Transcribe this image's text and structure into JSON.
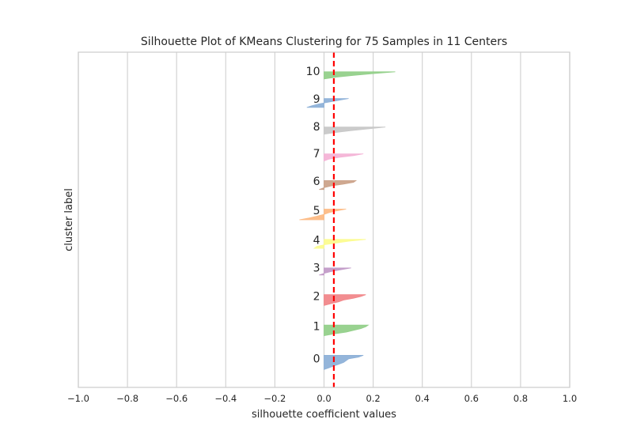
{
  "chart_data": {
    "type": "area",
    "title": "Silhouette Plot of KMeans Clustering for 75 Samples in 11 Centers",
    "xlabel": "silhouette coefficient values",
    "ylabel": "cluster label",
    "xlim": [
      -1.0,
      1.0
    ],
    "xticks": [
      -1.0,
      -0.8,
      -0.6,
      -0.4,
      -0.2,
      0.0,
      0.2,
      0.4,
      0.6,
      0.8,
      1.0
    ],
    "xtick_labels": [
      "−1.0",
      "−0.8",
      "−0.6",
      "−0.4",
      "−0.2",
      "0.0",
      "0.2",
      "0.4",
      "0.6",
      "0.8",
      "1.0"
    ],
    "grid": "vertical",
    "avg_silhouette": 0.04,
    "avg_line_color": "#ff0000",
    "series": [
      {
        "label": "0",
        "color": "#8eb1d8",
        "values": [
          0.16,
          0.14,
          0.1,
          0.09,
          0.08,
          0.06,
          0.04,
          0.02,
          0.0
        ]
      },
      {
        "label": "1",
        "color": "#93d08a",
        "values": [
          0.18,
          0.17,
          0.15,
          0.12,
          0.09,
          0.04,
          0.0
        ]
      },
      {
        "label": "2",
        "color": "#f1878a",
        "values": [
          0.17,
          0.15,
          0.12,
          0.08,
          0.06,
          0.03,
          0.0
        ]
      },
      {
        "label": "3",
        "color": "#c29bc8",
        "values": [
          0.11,
          0.07,
          0.03,
          0.0,
          -0.02
        ]
      },
      {
        "label": "4",
        "color": "#fcfc8f",
        "values": [
          0.17,
          0.1,
          0.05,
          0.0,
          -0.03,
          -0.04
        ]
      },
      {
        "label": "5",
        "color": "#fdbb84",
        "values": [
          0.09,
          0.05,
          0.02,
          0.0,
          -0.03,
          -0.06,
          -0.1
        ]
      },
      {
        "label": "6",
        "color": "#cca38a",
        "values": [
          0.13,
          0.12,
          0.08,
          0.03,
          0.0,
          -0.02
        ]
      },
      {
        "label": "7",
        "color": "#f4b3d6",
        "values": [
          0.16,
          0.12,
          0.06,
          0.02,
          0.0
        ]
      },
      {
        "label": "8",
        "color": "#c8c8c8",
        "values": [
          0.25,
          0.18,
          0.11,
          0.05,
          0.0
        ]
      },
      {
        "label": "9",
        "color": "#8eb1d8",
        "values": [
          0.1,
          0.06,
          0.02,
          -0.02,
          -0.05,
          -0.07
        ]
      },
      {
        "label": "10",
        "color": "#93d08a",
        "values": [
          0.29,
          0.2,
          0.12,
          0.05,
          0.0
        ]
      }
    ]
  }
}
